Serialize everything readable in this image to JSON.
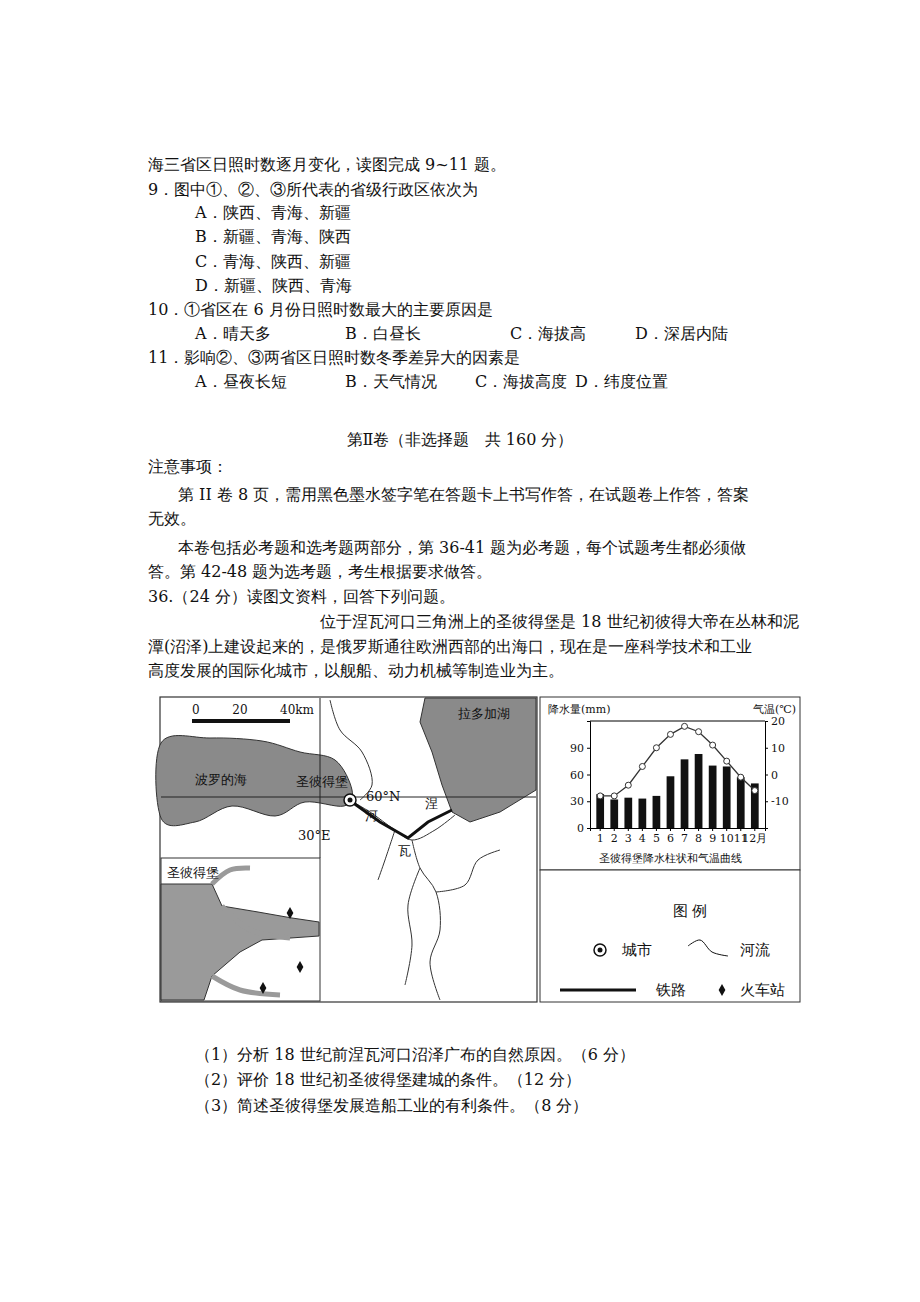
{
  "intro": "海三省区日照时数逐月变化，读图完成 9~11 题。",
  "q9": {
    "stem": "9．图中①、②、③所代表的省级行政区依次为",
    "options": [
      "A．陕西、青海、新疆",
      "B．新疆、青海、陕西",
      "C．青海、陕西、新疆",
      "D．新疆、陕西、青海"
    ]
  },
  "q10": {
    "stem": "10．①省区在 6 月份日照时数最大的主要原因是",
    "options": [
      "A．晴天多",
      "B．白昼长",
      "C．海拔高",
      "D．深居内陆"
    ]
  },
  "q11": {
    "stem": "11．影响②、③两省区日照时数冬季差异大的因素是",
    "options": [
      "A．昼夜长短",
      "B．天气情况",
      "C．海拔高度",
      "D．纬度位置"
    ]
  },
  "section_title": "第Ⅱ卷（非选择题   共 160 分）",
  "notice_title": "注意事项：",
  "notice": [
    "第 II 卷 8 页，需用黑色墨水签字笔在答题卡上书写作答，在试题卷上作答，答案",
    "无效。",
    "本卷包括必考题和选考题两部分，第 36-41 题为必考题，每个试题考生都必须做",
    "答。第 42-48 题为选考题，考生根据要求做答。"
  ],
  "q36": {
    "stem": "36.（24 分）读图文资料，回答下列问题。",
    "material": [
      "位于涅瓦河口三角洲上的圣彼得堡是 18 世纪初彼得大帝在丛林和泥",
      "潭(沼泽)上建设起来的，是俄罗斯通往欧洲西部的出海口，现在是一座科学技术和工业",
      "高度发展的国际化城市，以舰船、动力机械等制造业为主。"
    ],
    "subquestions": [
      "（1）分析 18 世纪前涅瓦河口沼泽广布的自然原因。（6 分）",
      "（2）评价 18 世纪初圣彼得堡建城的条件。（12 分）",
      "（3）简述圣彼得堡发展造船工业的有利条件。（8 分）"
    ]
  },
  "map": {
    "scale_labels": [
      "0",
      "20",
      "40km"
    ],
    "labels": [
      "波罗的海",
      "圣彼得堡",
      "60°N",
      "涅",
      "河",
      "瓦",
      "拉多加湖",
      "30°E"
    ],
    "inset_label": "圣彼得堡"
  },
  "legend": {
    "title": "图 例",
    "items": [
      "城市",
      "河流",
      "铁路",
      "火车站"
    ]
  },
  "chart_data": {
    "type": "bar",
    "title": "圣彼得堡降水柱状和气温曲线",
    "y_label": "降水量(mm)",
    "y2_label": "气温(℃)",
    "categories": [
      "1",
      "2",
      "3",
      "4",
      "5",
      "6",
      "7",
      "8",
      "9",
      "10",
      "11",
      "12月"
    ],
    "ylim": [
      0,
      120
    ],
    "yticks": [
      0,
      30,
      60,
      90
    ],
    "y2lim": [
      -20,
      20
    ],
    "y2ticks": [
      -10,
      0,
      10,
      20
    ],
    "series": [
      {
        "type": "bar",
        "color": "#111111",
        "values": [
          38,
          32,
          34,
          33,
          36,
          58,
          77,
          83,
          70,
          69,
          57,
          50
        ]
      },
      {
        "type": "line",
        "axis": "y2",
        "color": "#333333",
        "marker": "circle",
        "line_style": "solid",
        "values": [
          -8,
          -8,
          -4,
          3,
          10,
          15,
          18,
          16,
          11,
          5,
          -1,
          -6
        ]
      }
    ]
  }
}
